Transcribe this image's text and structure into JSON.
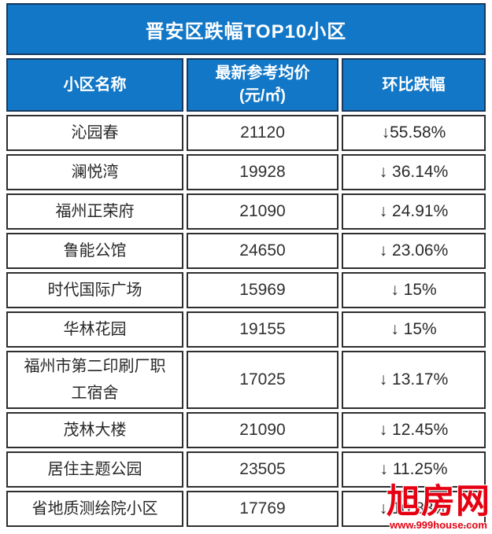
{
  "title": "晋安区跌幅TOP10小区",
  "colors": {
    "header_blue": "#1277c6",
    "header_border_navy": "#17395e",
    "cell_border": "#2e2e2e",
    "body_text": "#272727",
    "watermark_red": "#e60012"
  },
  "table": {
    "columns": [
      {
        "label": "小区名称"
      },
      {
        "label": "最新参考均价",
        "sub": "(元/㎡)"
      },
      {
        "label": "环比跌幅"
      }
    ],
    "rows": [
      {
        "name": "沁园春",
        "price": "21120",
        "drop": "↓55.58%"
      },
      {
        "name": "澜悦湾",
        "price": "19928",
        "drop": "↓ 36.14%"
      },
      {
        "name": "福州正荣府",
        "price": "21090",
        "drop": "↓ 24.91%"
      },
      {
        "name": "鲁能公馆",
        "price": "24650",
        "drop": "↓ 23.06%"
      },
      {
        "name": "时代国际广场",
        "price": "15969",
        "drop": "↓ 15%"
      },
      {
        "name": "华林花园",
        "price": "19155",
        "drop": "↓ 15%"
      },
      {
        "name": "福州市第二印刷厂职工宿舍",
        "price": "17025",
        "drop": "↓ 13.17%"
      },
      {
        "name": "茂林大楼",
        "price": "21090",
        "drop": "↓ 12.45%"
      },
      {
        "name": "居住主题公园",
        "price": "23505",
        "drop": "↓ 11.25%"
      },
      {
        "name": "省地质测绘院小区",
        "price": "17769",
        "drop": "↓ 10.83%"
      }
    ]
  },
  "watermark": {
    "logo": "旭房网",
    "url": "www.999house.com"
  },
  "chart_data": {
    "type": "table",
    "title": "晋安区跌幅TOP10小区",
    "columns": [
      "小区名称",
      "最新参考均价(元/㎡)",
      "环比跌幅"
    ],
    "rows": [
      [
        "沁园春",
        21120,
        "-55.58%"
      ],
      [
        "澜悦湾",
        19928,
        "-36.14%"
      ],
      [
        "福州正荣府",
        21090,
        "-24.91%"
      ],
      [
        "鲁能公馆",
        24650,
        "-23.06%"
      ],
      [
        "时代国际广场",
        15969,
        "-15%"
      ],
      [
        "华林花园",
        19155,
        "-15%"
      ],
      [
        "福州市第二印刷厂职工宿舍",
        17025,
        "-13.17%"
      ],
      [
        "茂林大楼",
        21090,
        "-12.45%"
      ],
      [
        "居住主题公园",
        23505,
        "-11.25%"
      ],
      [
        "省地质测绘院小区",
        17769,
        "-10.83%"
      ]
    ]
  }
}
